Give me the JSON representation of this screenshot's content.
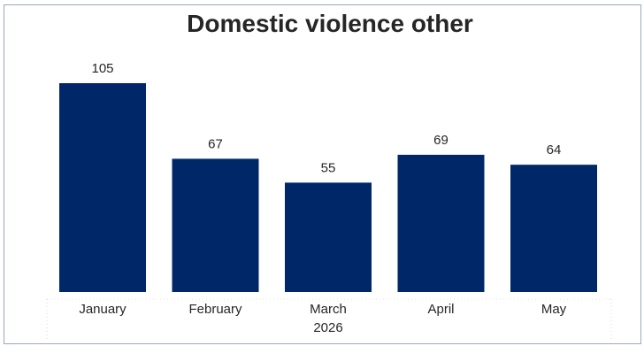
{
  "chart_data": {
    "type": "bar",
    "title": "Domestic violence other",
    "categories": [
      "January",
      "February",
      "March",
      "April",
      "May"
    ],
    "category_group_label": "2026",
    "category_group_under": "March",
    "values": [
      105,
      67,
      55,
      69,
      64
    ],
    "data_labels": true,
    "ylim": [
      0,
      105
    ],
    "grid": false,
    "legend": "none",
    "bar_color": "#002868"
  }
}
